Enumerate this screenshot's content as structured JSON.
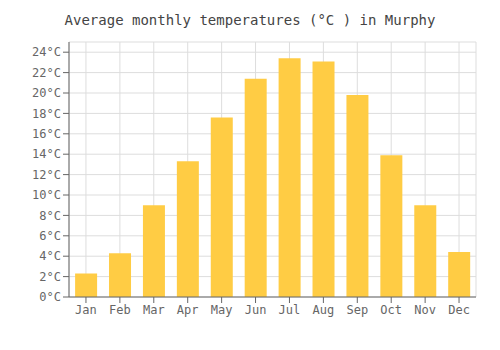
{
  "chart_data": {
    "type": "bar",
    "title": "Average monthly temperatures (°C ) in Murphy",
    "categories": [
      "Jan",
      "Feb",
      "Mar",
      "Apr",
      "May",
      "Jun",
      "Jul",
      "Aug",
      "Sep",
      "Oct",
      "Nov",
      "Dec"
    ],
    "values": [
      2.3,
      4.3,
      9.0,
      13.3,
      17.6,
      21.4,
      23.4,
      23.1,
      19.8,
      13.9,
      9.0,
      4.4
    ],
    "color": "#FFCC44",
    "ylim": [
      0,
      25
    ],
    "yticks": [
      {
        "value": 0,
        "label": "0°C"
      },
      {
        "value": 2,
        "label": "2°C"
      },
      {
        "value": 4,
        "label": "4°C"
      },
      {
        "value": 6,
        "label": "6°C"
      },
      {
        "value": 8,
        "label": "8°C"
      },
      {
        "value": 10,
        "label": "10°C"
      },
      {
        "value": 12,
        "label": "12°C"
      },
      {
        "value": 14,
        "label": "14°C"
      },
      {
        "value": 16,
        "label": "16°C"
      },
      {
        "value": 18,
        "label": "18°C"
      },
      {
        "value": 20,
        "label": "20°C"
      },
      {
        "value": 22,
        "label": "22°C"
      },
      {
        "value": 24,
        "label": "24°C"
      }
    ],
    "grid": true
  }
}
